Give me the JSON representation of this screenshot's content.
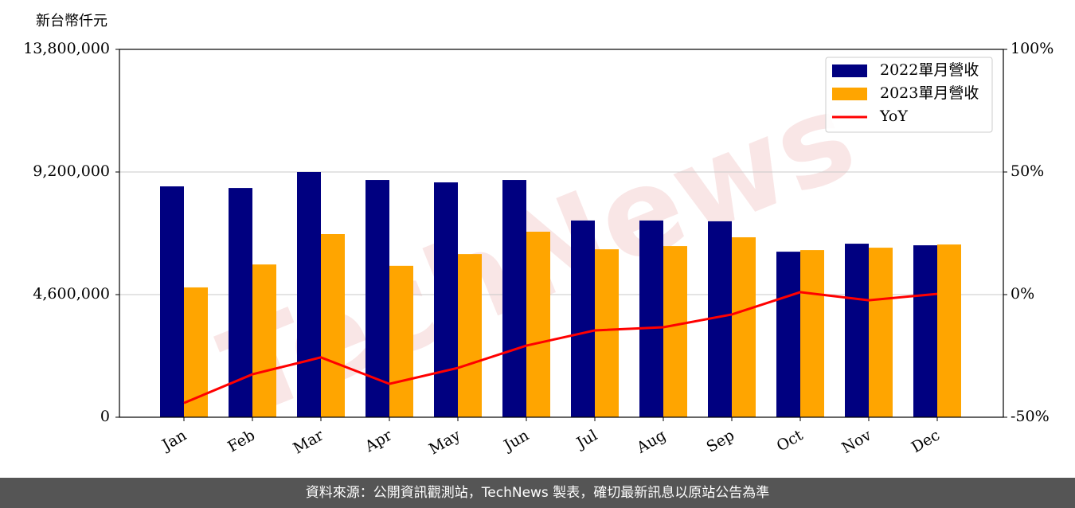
{
  "chart_data": {
    "type": "bar_line",
    "y_axis_label": "新台幣仟元",
    "watermark": "TechNews",
    "categories": [
      "Jan",
      "Feb",
      "Mar",
      "Apr",
      "May",
      "Jun",
      "Jul",
      "Aug",
      "Sep",
      "Oct",
      "Nov",
      "Dec"
    ],
    "series": [
      {
        "name": "2022單月營收",
        "color": "#000080",
        "type": "bar",
        "values": [
          8660000,
          8600000,
          9200000,
          8900000,
          8810000,
          8900000,
          7380000,
          7380000,
          7350000,
          6210000,
          6510000,
          6450000
        ]
      },
      {
        "name": "2023單月營收",
        "color": "#ffa500",
        "type": "bar",
        "values": [
          4870000,
          5730000,
          6870000,
          5680000,
          6120000,
          6960000,
          6300000,
          6420000,
          6750000,
          6270000,
          6360000,
          6480000
        ]
      },
      {
        "name": "YoY",
        "color": "#ff0000",
        "type": "line",
        "axis": "y2",
        "values": [
          -44.2,
          -32.5,
          -25.6,
          -36.4,
          -29.9,
          -20.8,
          -14.6,
          -13.3,
          -8.1,
          1.0,
          -2.3,
          0.3
        ]
      }
    ],
    "ylim": [
      0,
      13800000
    ],
    "yticks": [
      {
        "value": 0,
        "label": "0"
      },
      {
        "value": 4600000,
        "label": "4,600,000"
      },
      {
        "value": 9200000,
        "label": "9,200,000"
      },
      {
        "value": 13800000,
        "label": "13,800,000"
      }
    ],
    "y2lim": [
      -50,
      100
    ],
    "y2ticks": [
      {
        "value": -50,
        "label": "-50%"
      },
      {
        "value": 0,
        "label": "0%"
      },
      {
        "value": 50,
        "label": "50%"
      },
      {
        "value": 100,
        "label": "100%"
      }
    ],
    "grid": true,
    "legend": "upper right",
    "footer": "資料來源：公開資訊觀測站，TechNews 製表，確切最新訊息以原站公告為準"
  }
}
